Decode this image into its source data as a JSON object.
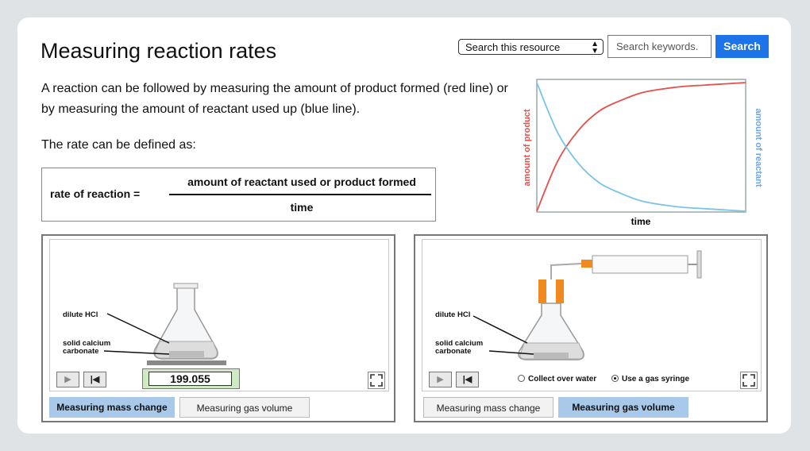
{
  "header": {
    "title": "Measuring reaction rates",
    "search_scope": "Search this resource",
    "search_placeholder": "Search keywords.",
    "search_button": "Search"
  },
  "intro": {
    "paragraph1": "A reaction can be followed by measuring the amount of product formed (red line) or by measuring the amount of reactant used up (blue line).",
    "paragraph2": "The rate can be defined as:"
  },
  "formula": {
    "lhs": "rate of reaction  =",
    "numerator": "amount of reactant used or product formed",
    "denominator": "time"
  },
  "chart_data": {
    "type": "line",
    "xlabel": "time",
    "ylabel_left": "amount of product",
    "ylabel_right": "amount of reactant",
    "x": [
      0,
      1,
      2,
      3,
      4,
      5,
      6,
      7,
      8,
      9,
      10
    ],
    "series": [
      {
        "color": "#e4504c",
        "values": [
          0,
          0.39,
          0.63,
          0.78,
          0.86,
          0.92,
          0.95,
          0.97,
          0.98,
          0.99,
          1.0
        ]
      },
      {
        "color": "#78c4e8",
        "values": [
          1.0,
          0.61,
          0.37,
          0.22,
          0.14,
          0.08,
          0.05,
          0.03,
          0.02,
          0.01,
          0.0
        ]
      }
    ],
    "grid": false
  },
  "sim_mass": {
    "label_acid": "dilute HCl",
    "label_solid": "solid calcium carbonate",
    "balance_reading": "199.055",
    "tab_active": "Measuring mass change",
    "tab_inactive": "Measuring gas volume"
  },
  "sim_gas": {
    "label_acid": "dilute HCl",
    "label_solid": "solid calcium carbonate",
    "option1": "Collect over water",
    "option2": "Use a gas syringe",
    "selected_option": "Use a gas syringe",
    "tab_inactive": "Measuring mass change",
    "tab_active": "Measuring gas volume"
  },
  "colors": {
    "accent": "#1d74e8",
    "active_tab": "#a9c9ea",
    "product": "#e4504c",
    "reactant": "#78c4e8",
    "syringe_clamp": "#f08a1e"
  }
}
